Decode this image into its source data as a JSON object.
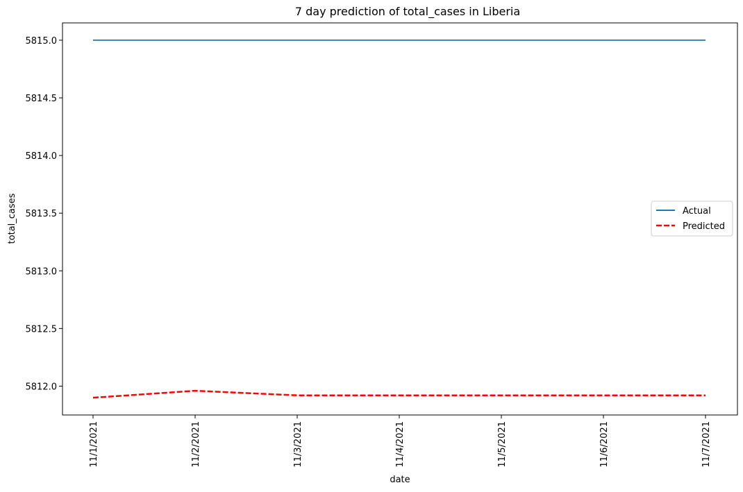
{
  "chart_data": {
    "type": "line",
    "title": "7 day prediction of total_cases in Liberia",
    "xlabel": "date",
    "ylabel": "total_cases",
    "categories": [
      "11/1/2021",
      "11/2/2021",
      "11/3/2021",
      "11/4/2021",
      "11/5/2021",
      "11/6/2021",
      "11/7/2021"
    ],
    "y_ticks": [
      "5812.0",
      "5812.5",
      "5813.0",
      "5813.5",
      "5814.0",
      "5814.5",
      "5815.0"
    ],
    "ylim": [
      5811.75,
      5815.15
    ],
    "grid": false,
    "legend_position": "center-right",
    "series": [
      {
        "name": "Actual",
        "color": "#1f77b4",
        "style": "solid",
        "values": [
          5815,
          5815,
          5815,
          5815,
          5815,
          5815,
          5815
        ]
      },
      {
        "name": "Predicted",
        "color": "#ff0000",
        "style": "dashed",
        "values": [
          5811.9,
          5811.96,
          5811.92,
          5811.92,
          5811.92,
          5811.92,
          5811.92
        ]
      }
    ]
  }
}
